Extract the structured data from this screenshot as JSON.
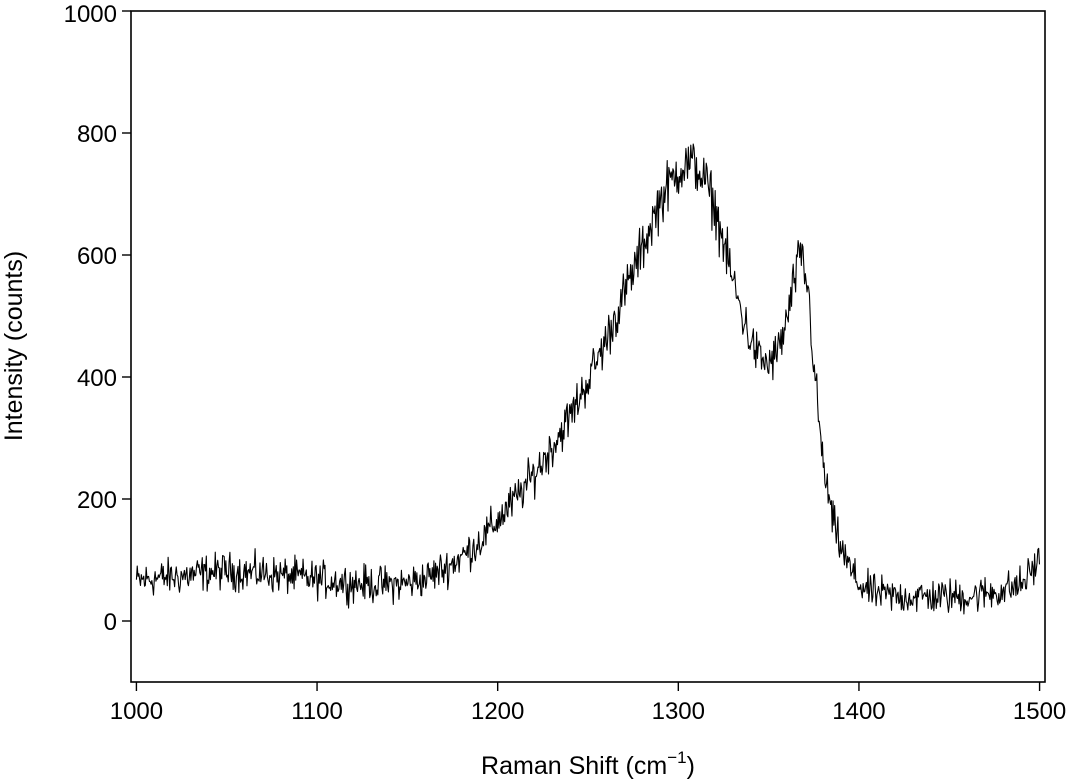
{
  "chart_data": {
    "type": "line",
    "title": "",
    "xlabel": "Raman Shift (cm",
    "xlabel_superscript": "−1",
    "xlabel_suffix": ")",
    "ylabel": "Intensity (counts)",
    "xlim": [
      997,
      1503
    ],
    "ylim": [
      -100,
      1000
    ],
    "x_ticks": [
      1000,
      1100,
      1200,
      1300,
      1400,
      1500
    ],
    "y_ticks": [
      0,
      200,
      400,
      600,
      800,
      1000
    ],
    "x_tick_labels": [
      "1000",
      "1100",
      "1200",
      "1300",
      "1400",
      "1500"
    ],
    "y_tick_labels": [
      "0",
      "200",
      "400",
      "600",
      "800",
      "1000"
    ],
    "grid": false,
    "legend": "none",
    "line_color": "#000000",
    "series": [
      {
        "x": [
          1000,
          1010,
          1020,
          1030,
          1040,
          1050,
          1060,
          1070,
          1080,
          1090,
          1100,
          1110,
          1120,
          1130,
          1140,
          1150,
          1160,
          1170,
          1180,
          1190,
          1200,
          1210,
          1220,
          1230,
          1240,
          1250,
          1260,
          1270,
          1280,
          1290,
          1300,
          1305,
          1310,
          1315,
          1320,
          1325,
          1330,
          1335,
          1340,
          1345,
          1350,
          1355,
          1360,
          1365,
          1368,
          1372,
          1375,
          1380,
          1385,
          1390,
          1395,
          1400,
          1405,
          1410,
          1420,
          1430,
          1440,
          1450,
          1460,
          1470,
          1480,
          1490,
          1500
        ],
        "y": [
          65,
          70,
          72,
          75,
          80,
          82,
          80,
          78,
          75,
          72,
          68,
          65,
          62,
          60,
          60,
          62,
          70,
          85,
          105,
          130,
          165,
          200,
          240,
          285,
          335,
          395,
          460,
          535,
          610,
          690,
          740,
          750,
          745,
          720,
          680,
          620,
          560,
          505,
          460,
          430,
          420,
          440,
          490,
          570,
          600,
          540,
          420,
          260,
          170,
          120,
          85,
          60,
          50,
          45,
          40,
          40,
          40,
          40,
          40,
          45,
          50,
          60,
          100
        ],
        "noise_amplitude": 28
      }
    ]
  }
}
